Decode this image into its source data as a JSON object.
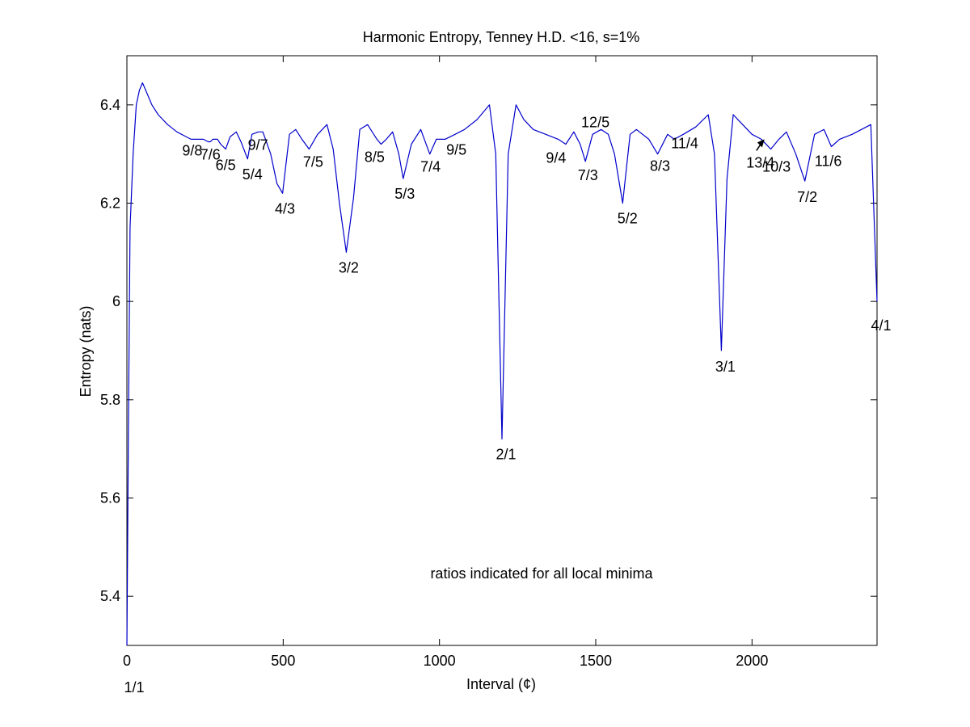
{
  "chart_data": {
    "type": "line",
    "title": "Harmonic Entropy, Tenney H.D. <16, s=1%",
    "xlabel": "Interval (¢)",
    "ylabel": "Entropy (nats)",
    "xlim": [
      0,
      2400
    ],
    "ylim": [
      5.3,
      6.5
    ],
    "xticks": [
      0,
      500,
      1000,
      1500,
      2000
    ],
    "xtick_labels": [
      "0",
      "500",
      "1000",
      "1500",
      "2000"
    ],
    "yticks": [
      5.4,
      5.6,
      5.8,
      6.0,
      6.2,
      6.4
    ],
    "ytick_labels": [
      "5.4",
      "5.6",
      "5.8",
      "6",
      "6.2",
      "6.4"
    ],
    "grid": false,
    "line_color": "#0000cc",
    "note": "ratios indicated for all local minima",
    "series": [
      {
        "x": [
          0,
          5,
          10,
          20,
          30,
          40,
          50,
          60,
          80,
          100,
          130,
          160,
          190,
          205,
          220,
          245,
          260,
          267,
          275,
          290,
          300,
          316,
          330,
          350,
          365,
          386,
          400,
          420,
          435,
          460,
          480,
          498,
          520,
          540,
          560,
          583,
          610,
          640,
          660,
          680,
          702,
          725,
          745,
          770,
          800,
          813,
          830,
          850,
          870,
          884,
          910,
          940,
          969,
          990,
          1018,
          1050,
          1080,
          1120,
          1160,
          1180,
          1200,
          1220,
          1245,
          1270,
          1300,
          1340,
          1380,
          1404,
          1430,
          1450,
          1467,
          1490,
          1517,
          1540,
          1560,
          1586,
          1610,
          1630,
          1670,
          1698,
          1730,
          1751,
          1780,
          1820,
          1860,
          1880,
          1902,
          1920,
          1940,
          1970,
          2000,
          2030,
          2060,
          2086,
          2110,
          2140,
          2169,
          2200,
          2230,
          2254,
          2280,
          2320,
          2350,
          2380,
          2400
        ],
        "y": [
          5.3,
          5.75,
          6.15,
          6.3,
          6.4,
          6.43,
          6.445,
          6.43,
          6.4,
          6.38,
          6.36,
          6.345,
          6.335,
          6.33,
          6.33,
          6.33,
          6.325,
          6.325,
          6.33,
          6.33,
          6.32,
          6.31,
          6.335,
          6.345,
          6.325,
          6.29,
          6.34,
          6.345,
          6.345,
          6.3,
          6.24,
          6.22,
          6.34,
          6.35,
          6.33,
          6.31,
          6.34,
          6.36,
          6.31,
          6.2,
          6.1,
          6.21,
          6.35,
          6.36,
          6.33,
          6.32,
          6.33,
          6.345,
          6.3,
          6.25,
          6.32,
          6.35,
          6.3,
          6.33,
          6.33,
          6.34,
          6.35,
          6.37,
          6.4,
          6.3,
          5.72,
          6.3,
          6.4,
          6.37,
          6.35,
          6.34,
          6.33,
          6.32,
          6.345,
          6.32,
          6.285,
          6.34,
          6.35,
          6.34,
          6.3,
          6.2,
          6.34,
          6.35,
          6.33,
          6.3,
          6.34,
          6.33,
          6.34,
          6.355,
          6.38,
          6.3,
          5.9,
          6.25,
          6.38,
          6.36,
          6.34,
          6.33,
          6.31,
          6.33,
          6.345,
          6.3,
          6.245,
          6.34,
          6.35,
          6.315,
          6.33,
          6.34,
          6.35,
          6.36,
          6.0
        ]
      }
    ],
    "annotations": [
      {
        "label": "1/1",
        "x": 0,
        "y": 5.3
      },
      {
        "label": "9/8",
        "x": 204,
        "y": 6.33
      },
      {
        "label": "7/6",
        "x": 267,
        "y": 6.325
      },
      {
        "label": "6/5",
        "x": 316,
        "y": 6.31
      },
      {
        "label": "5/4",
        "x": 386,
        "y": 6.29
      },
      {
        "label": "9/7",
        "x": 435,
        "y": 6.345
      },
      {
        "label": "4/3",
        "x": 498,
        "y": 6.22
      },
      {
        "label": "7/5",
        "x": 583,
        "y": 6.31
      },
      {
        "label": "3/2",
        "x": 702,
        "y": 6.1
      },
      {
        "label": "8/5",
        "x": 813,
        "y": 6.32
      },
      {
        "label": "5/3",
        "x": 884,
        "y": 6.25
      },
      {
        "label": "7/4",
        "x": 969,
        "y": 6.3
      },
      {
        "label": "9/5",
        "x": 1018,
        "y": 6.33
      },
      {
        "label": "2/1",
        "x": 1200,
        "y": 5.72
      },
      {
        "label": "9/4",
        "x": 1404,
        "y": 6.32
      },
      {
        "label": "7/3",
        "x": 1467,
        "y": 6.285
      },
      {
        "label": "12/5",
        "x": 1517,
        "y": 6.35
      },
      {
        "label": "5/2",
        "x": 1586,
        "y": 6.2
      },
      {
        "label": "8/3",
        "x": 1698,
        "y": 6.3
      },
      {
        "label": "11/4",
        "x": 1751,
        "y": 6.33
      },
      {
        "label": "3/1",
        "x": 1902,
        "y": 5.9
      },
      {
        "label": "13/4",
        "x": 2040,
        "y": 6.33
      },
      {
        "label": "10/3",
        "x": 2086,
        "y": 6.31
      },
      {
        "label": "7/2",
        "x": 2169,
        "y": 6.245
      },
      {
        "label": "11/6",
        "x": 2254,
        "y": 6.315
      },
      {
        "label": "4/1",
        "x": 2400,
        "y": 6.0
      }
    ]
  }
}
